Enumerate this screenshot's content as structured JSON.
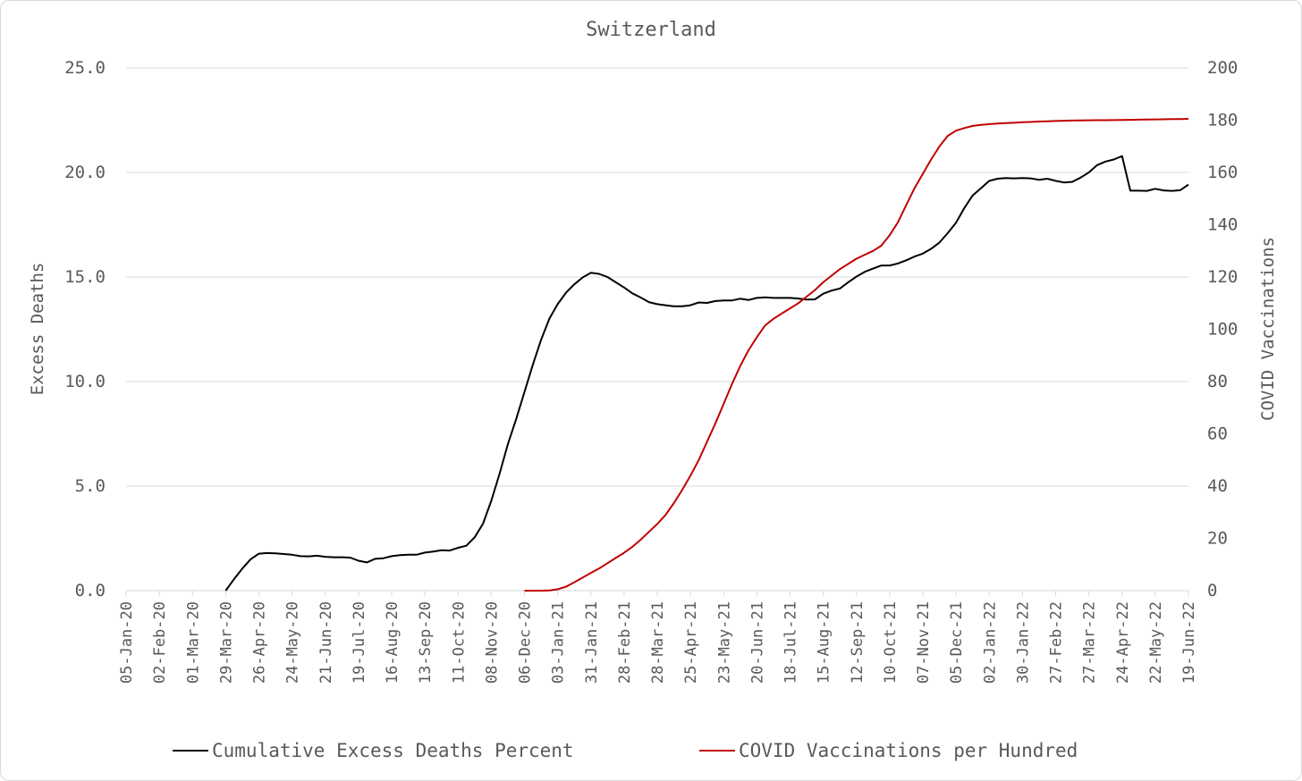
{
  "chart_data": {
    "type": "line",
    "title": "Switzerland",
    "y_left_label": "Excess Deaths",
    "y_right_label": "COVID Vaccinations",
    "y_left_lim": [
      0,
      25
    ],
    "y_left_ticks": [
      "0.0",
      "5.0",
      "10.0",
      "15.0",
      "20.0",
      "25.0"
    ],
    "y_right_lim": [
      0,
      200
    ],
    "y_right_ticks": [
      "0",
      "20",
      "40",
      "60",
      "80",
      "100",
      "120",
      "140",
      "160",
      "180",
      "200"
    ],
    "x_tick_labels": [
      "05-Jan-20",
      "02-Feb-20",
      "01-Mar-20",
      "29-Mar-20",
      "26-Apr-20",
      "24-May-20",
      "21-Jun-20",
      "19-Jul-20",
      "16-Aug-20",
      "13-Sep-20",
      "11-Oct-20",
      "08-Nov-20",
      "06-Dec-20",
      "03-Jan-21",
      "31-Jan-21",
      "28-Feb-21",
      "28-Mar-21",
      "25-Apr-21",
      "23-May-21",
      "20-Jun-21",
      "18-Jul-21",
      "15-Aug-21",
      "12-Sep-21",
      "10-Oct-21",
      "07-Nov-21",
      "05-Dec-21",
      "02-Jan-22",
      "30-Jan-22",
      "27-Feb-22",
      "27-Mar-22",
      "24-Apr-22",
      "22-May-22",
      "19-Jun-22"
    ],
    "grid": true,
    "legend_position": "bottom",
    "series": [
      {
        "name": "Cumulative Excess Deaths Percent",
        "color": "#000000",
        "axis": "left",
        "points": [
          [
            "29-Mar-20",
            0.0
          ],
          [
            "05-Apr-20",
            0.55
          ],
          [
            "12-Apr-20",
            1.05
          ],
          [
            "19-Apr-20",
            1.5
          ],
          [
            "26-Apr-20",
            1.77
          ],
          [
            "03-May-20",
            1.8
          ],
          [
            "10-May-20",
            1.78
          ],
          [
            "17-May-20",
            1.75
          ],
          [
            "24-May-20",
            1.72
          ],
          [
            "31-May-20",
            1.65
          ],
          [
            "07-Jun-20",
            1.64
          ],
          [
            "14-Jun-20",
            1.67
          ],
          [
            "21-Jun-20",
            1.62
          ],
          [
            "28-Jun-20",
            1.6
          ],
          [
            "05-Jul-20",
            1.6
          ],
          [
            "12-Jul-20",
            1.58
          ],
          [
            "19-Jul-20",
            1.43
          ],
          [
            "26-Jul-20",
            1.35
          ],
          [
            "02-Aug-20",
            1.52
          ],
          [
            "09-Aug-20",
            1.55
          ],
          [
            "16-Aug-20",
            1.65
          ],
          [
            "23-Aug-20",
            1.7
          ],
          [
            "30-Aug-20",
            1.72
          ],
          [
            "06-Sep-20",
            1.72
          ],
          [
            "13-Sep-20",
            1.82
          ],
          [
            "20-Sep-20",
            1.87
          ],
          [
            "27-Sep-20",
            1.93
          ],
          [
            "04-Oct-20",
            1.92
          ],
          [
            "11-Oct-20",
            2.05
          ],
          [
            "18-Oct-20",
            2.15
          ],
          [
            "25-Oct-20",
            2.55
          ],
          [
            "01-Nov-20",
            3.2
          ],
          [
            "08-Nov-20",
            4.3
          ],
          [
            "15-Nov-20",
            5.6
          ],
          [
            "22-Nov-20",
            7.0
          ],
          [
            "29-Nov-20",
            8.2
          ],
          [
            "06-Dec-20",
            9.5
          ],
          [
            "13-Dec-20",
            10.8
          ],
          [
            "20-Dec-20",
            12.0
          ],
          [
            "27-Dec-20",
            13.0
          ],
          [
            "03-Jan-21",
            13.7
          ],
          [
            "10-Jan-21",
            14.25
          ],
          [
            "17-Jan-21",
            14.65
          ],
          [
            "24-Jan-21",
            14.98
          ],
          [
            "31-Jan-21",
            15.2
          ],
          [
            "07-Feb-21",
            15.15
          ],
          [
            "14-Feb-21",
            15.0
          ],
          [
            "21-Feb-21",
            14.75
          ],
          [
            "28-Feb-21",
            14.5
          ],
          [
            "07-Mar-21",
            14.22
          ],
          [
            "14-Mar-21",
            14.02
          ],
          [
            "21-Mar-21",
            13.8
          ],
          [
            "28-Mar-21",
            13.7
          ],
          [
            "04-Apr-21",
            13.65
          ],
          [
            "11-Apr-21",
            13.6
          ],
          [
            "18-Apr-21",
            13.6
          ],
          [
            "25-Apr-21",
            13.65
          ],
          [
            "02-May-21",
            13.78
          ],
          [
            "09-May-21",
            13.76
          ],
          [
            "16-May-21",
            13.85
          ],
          [
            "23-May-21",
            13.88
          ],
          [
            "30-May-21",
            13.88
          ],
          [
            "06-Jun-21",
            13.96
          ],
          [
            "13-Jun-21",
            13.9
          ],
          [
            "20-Jun-21",
            14.0
          ],
          [
            "27-Jun-21",
            14.03
          ],
          [
            "04-Jul-21",
            14.0
          ],
          [
            "11-Jul-21",
            14.0
          ],
          [
            "18-Jul-21",
            14.0
          ],
          [
            "25-Jul-21",
            13.97
          ],
          [
            "01-Aug-21",
            13.92
          ],
          [
            "08-Aug-21",
            13.93
          ],
          [
            "15-Aug-21",
            14.2
          ],
          [
            "22-Aug-21",
            14.35
          ],
          [
            "29-Aug-21",
            14.45
          ],
          [
            "05-Sep-21",
            14.75
          ],
          [
            "12-Sep-21",
            15.02
          ],
          [
            "19-Sep-21",
            15.25
          ],
          [
            "26-Sep-21",
            15.4
          ],
          [
            "03-Oct-21",
            15.55
          ],
          [
            "10-Oct-21",
            15.55
          ],
          [
            "17-Oct-21",
            15.65
          ],
          [
            "24-Oct-21",
            15.8
          ],
          [
            "31-Oct-21",
            15.98
          ],
          [
            "07-Nov-21",
            16.12
          ],
          [
            "14-Nov-21",
            16.35
          ],
          [
            "21-Nov-21",
            16.65
          ],
          [
            "28-Nov-21",
            17.1
          ],
          [
            "05-Dec-21",
            17.6
          ],
          [
            "12-Dec-21",
            18.3
          ],
          [
            "19-Dec-21",
            18.9
          ],
          [
            "26-Dec-21",
            19.25
          ],
          [
            "02-Jan-22",
            19.6
          ],
          [
            "09-Jan-22",
            19.7
          ],
          [
            "16-Jan-22",
            19.73
          ],
          [
            "23-Jan-22",
            19.72
          ],
          [
            "30-Jan-22",
            19.73
          ],
          [
            "06-Feb-22",
            19.72
          ],
          [
            "13-Feb-22",
            19.65
          ],
          [
            "20-Feb-22",
            19.7
          ],
          [
            "27-Feb-22",
            19.6
          ],
          [
            "06-Mar-22",
            19.52
          ],
          [
            "13-Mar-22",
            19.55
          ],
          [
            "20-Mar-22",
            19.75
          ],
          [
            "27-Mar-22",
            20.0
          ],
          [
            "03-Apr-22",
            20.35
          ],
          [
            "10-Apr-22",
            20.52
          ],
          [
            "17-Apr-22",
            20.62
          ],
          [
            "24-Apr-22",
            20.78
          ],
          [
            "01-May-22",
            19.13
          ],
          [
            "08-May-22",
            19.13
          ],
          [
            "15-May-22",
            19.12
          ],
          [
            "22-May-22",
            19.22
          ],
          [
            "29-May-22",
            19.14
          ],
          [
            "05-Jun-22",
            19.12
          ],
          [
            "12-Jun-22",
            19.15
          ],
          [
            "19-Jun-22",
            19.42
          ]
        ]
      },
      {
        "name": "COVID Vaccinations per Hundred",
        "color": "#c00000",
        "axis": "right",
        "points": [
          [
            "06-Dec-20",
            0.0
          ],
          [
            "13-Dec-20",
            0.0
          ],
          [
            "20-Dec-20",
            0.0
          ],
          [
            "27-Dec-20",
            0.1
          ],
          [
            "03-Jan-21",
            0.5
          ],
          [
            "10-Jan-21",
            1.5
          ],
          [
            "17-Jan-21",
            3.2
          ],
          [
            "24-Jan-21",
            5.0
          ],
          [
            "31-Jan-21",
            6.8
          ],
          [
            "07-Feb-21",
            8.5
          ],
          [
            "14-Feb-21",
            10.5
          ],
          [
            "21-Feb-21",
            12.5
          ],
          [
            "28-Feb-21",
            14.5
          ],
          [
            "07-Mar-21",
            16.8
          ],
          [
            "14-Mar-21",
            19.5
          ],
          [
            "21-Mar-21",
            22.5
          ],
          [
            "28-Mar-21",
            25.5
          ],
          [
            "04-Apr-21",
            29.0
          ],
          [
            "11-Apr-21",
            33.5
          ],
          [
            "18-Apr-21",
            38.5
          ],
          [
            "25-Apr-21",
            44.0
          ],
          [
            "02-May-21",
            50.0
          ],
          [
            "09-May-21",
            57.0
          ],
          [
            "16-May-21",
            64.0
          ],
          [
            "23-May-21",
            71.5
          ],
          [
            "30-May-21",
            79.0
          ],
          [
            "06-Jun-21",
            86.0
          ],
          [
            "13-Jun-21",
            92.0
          ],
          [
            "20-Jun-21",
            97.0
          ],
          [
            "27-Jun-21",
            101.5
          ],
          [
            "04-Jul-21",
            104.0
          ],
          [
            "11-Jul-21",
            106.0
          ],
          [
            "18-Jul-21",
            108.0
          ],
          [
            "25-Jul-21",
            110.0
          ],
          [
            "01-Aug-21",
            112.5
          ],
          [
            "08-Aug-21",
            115.0
          ],
          [
            "15-Aug-21",
            118.0
          ],
          [
            "22-Aug-21",
            120.5
          ],
          [
            "29-Aug-21",
            123.0
          ],
          [
            "05-Sep-21",
            125.0
          ],
          [
            "12-Sep-21",
            127.0
          ],
          [
            "19-Sep-21",
            128.5
          ],
          [
            "26-Sep-21",
            130.0
          ],
          [
            "03-Oct-21",
            132.0
          ],
          [
            "10-Oct-21",
            136.0
          ],
          [
            "17-Oct-21",
            141.0
          ],
          [
            "24-Oct-21",
            147.5
          ],
          [
            "31-Oct-21",
            154.0
          ],
          [
            "07-Nov-21",
            159.5
          ],
          [
            "14-Nov-21",
            165.0
          ],
          [
            "21-Nov-21",
            170.0
          ],
          [
            "28-Nov-21",
            174.0
          ],
          [
            "05-Dec-21",
            176.0
          ],
          [
            "12-Dec-21",
            177.0
          ],
          [
            "19-Dec-21",
            177.8
          ],
          [
            "26-Dec-21",
            178.2
          ],
          [
            "02-Jan-22",
            178.5
          ],
          [
            "09-Jan-22",
            178.7
          ],
          [
            "16-Jan-22",
            178.9
          ],
          [
            "23-Jan-22",
            179.0
          ],
          [
            "30-Jan-22",
            179.2
          ],
          [
            "06-Feb-22",
            179.3
          ],
          [
            "13-Feb-22",
            179.5
          ],
          [
            "20-Feb-22",
            179.6
          ],
          [
            "27-Feb-22",
            179.7
          ],
          [
            "06-Mar-22",
            179.8
          ],
          [
            "13-Mar-22",
            179.85
          ],
          [
            "20-Mar-22",
            179.9
          ],
          [
            "27-Mar-22",
            179.95
          ],
          [
            "03-Apr-22",
            180.0
          ],
          [
            "10-Apr-22",
            180.0
          ],
          [
            "17-Apr-22",
            180.05
          ],
          [
            "24-Apr-22",
            180.1
          ],
          [
            "01-May-22",
            180.15
          ],
          [
            "08-May-22",
            180.2
          ],
          [
            "15-May-22",
            180.25
          ],
          [
            "22-May-22",
            180.3
          ],
          [
            "29-May-22",
            180.35
          ],
          [
            "05-Jun-22",
            180.4
          ],
          [
            "12-Jun-22",
            180.45
          ],
          [
            "19-Jun-22",
            180.5
          ]
        ]
      }
    ]
  },
  "colors": {
    "gridline": "#d9d9d9",
    "text": "#595959"
  }
}
